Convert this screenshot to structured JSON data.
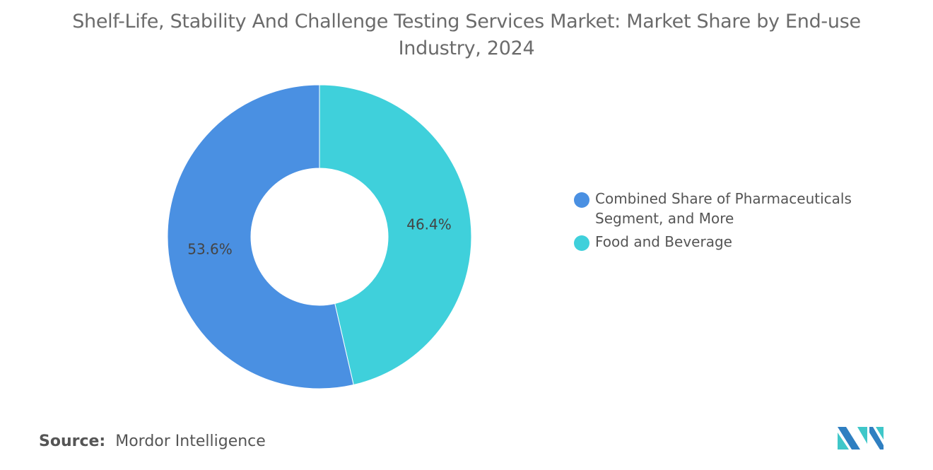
{
  "chart_data": {
    "type": "pie",
    "variant": "donut",
    "title": "Shelf-Life, Stability And Challenge Testing Services Market: Market Share by End-use Industry, 2024",
    "slices": [
      {
        "label": "Food and Beverage",
        "value": 46.4,
        "display": "46.4%",
        "color": "#3fd0db"
      },
      {
        "label": "Combined Share of Pharmaceuticals Segment, and More",
        "value": 53.6,
        "display": "53.6%",
        "color": "#4a90e2"
      }
    ],
    "legend": {
      "placement": "right",
      "entries": [
        {
          "label": "Combined Share of Pharmaceuticals Segment, and More",
          "color": "#4a90e2"
        },
        {
          "label": "Food and Beverage",
          "color": "#3fd0db"
        }
      ]
    }
  },
  "source": {
    "label": "Source:",
    "value": "Mordor Intelligence"
  },
  "logo": {
    "colors": [
      "#2f7fc1",
      "#3fc7c9"
    ]
  }
}
